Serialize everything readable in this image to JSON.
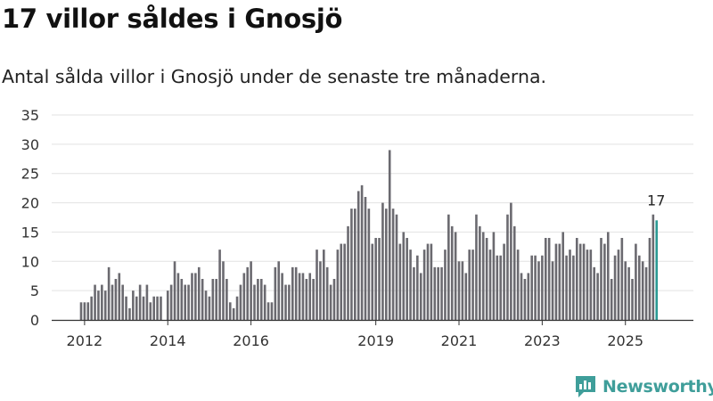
{
  "title": "17 villor såldes i Gnosjö",
  "subtitle": "Antal sålda villor i Gnosjö under de senaste tre månaderna.",
  "brand": {
    "name": "Newsworthy",
    "icon": "newsworthy-logo-icon"
  },
  "colors": {
    "bar": "#6b6a70",
    "highlight": "#2b9a94",
    "grid": "#e2e2e2",
    "axis": "#333333",
    "brand": "#3f9e9a"
  },
  "chart_data": {
    "type": "bar",
    "title": "17 villor såldes i Gnosjö",
    "xlabel": "",
    "ylabel": "",
    "ylim": [
      0,
      35
    ],
    "yticks": [
      0,
      5,
      10,
      15,
      20,
      25,
      30,
      35
    ],
    "x_tick_labels": [
      {
        "label": "2012",
        "index": 1
      },
      {
        "label": "2014",
        "index": 25
      },
      {
        "label": "2016",
        "index": 49
      },
      {
        "label": "2019",
        "index": 85
      },
      {
        "label": "2021",
        "index": 109
      },
      {
        "label": "2023",
        "index": 133
      },
      {
        "label": "2025",
        "index": 157
      }
    ],
    "highlight_label": "17",
    "series": [
      {
        "name": "Antal sålda villor (rullande tre månader)",
        "start": "2011-12",
        "values": [
          3,
          3,
          3,
          4,
          6,
          5,
          6,
          5,
          9,
          6,
          7,
          8,
          6,
          4,
          2,
          5,
          4,
          6,
          4,
          6,
          3,
          4,
          4,
          4,
          0,
          5,
          6,
          10,
          8,
          7,
          6,
          6,
          8,
          8,
          9,
          7,
          5,
          4,
          7,
          7,
          12,
          10,
          7,
          3,
          2,
          4,
          6,
          8,
          9,
          10,
          6,
          7,
          7,
          6,
          3,
          3,
          9,
          10,
          8,
          6,
          6,
          9,
          9,
          8,
          8,
          7,
          8,
          7,
          12,
          10,
          12,
          9,
          6,
          7,
          12,
          13,
          13,
          16,
          19,
          19,
          22,
          23,
          21,
          19,
          13,
          14,
          14,
          20,
          19,
          29,
          19,
          18,
          13,
          15,
          14,
          12,
          9,
          11,
          8,
          12,
          13,
          13,
          9,
          9,
          9,
          12,
          18,
          16,
          15,
          10,
          10,
          8,
          12,
          12,
          18,
          16,
          15,
          14,
          12,
          15,
          11,
          11,
          13,
          18,
          20,
          16,
          12,
          8,
          7,
          8,
          11,
          11,
          10,
          11,
          14,
          14,
          10,
          13,
          13,
          15,
          11,
          12,
          11,
          14,
          13,
          13,
          12,
          12,
          9,
          8,
          14,
          13,
          15,
          7,
          11,
          12,
          14,
          10,
          9,
          7,
          13,
          11,
          10,
          9,
          14,
          18,
          17
        ]
      }
    ]
  }
}
